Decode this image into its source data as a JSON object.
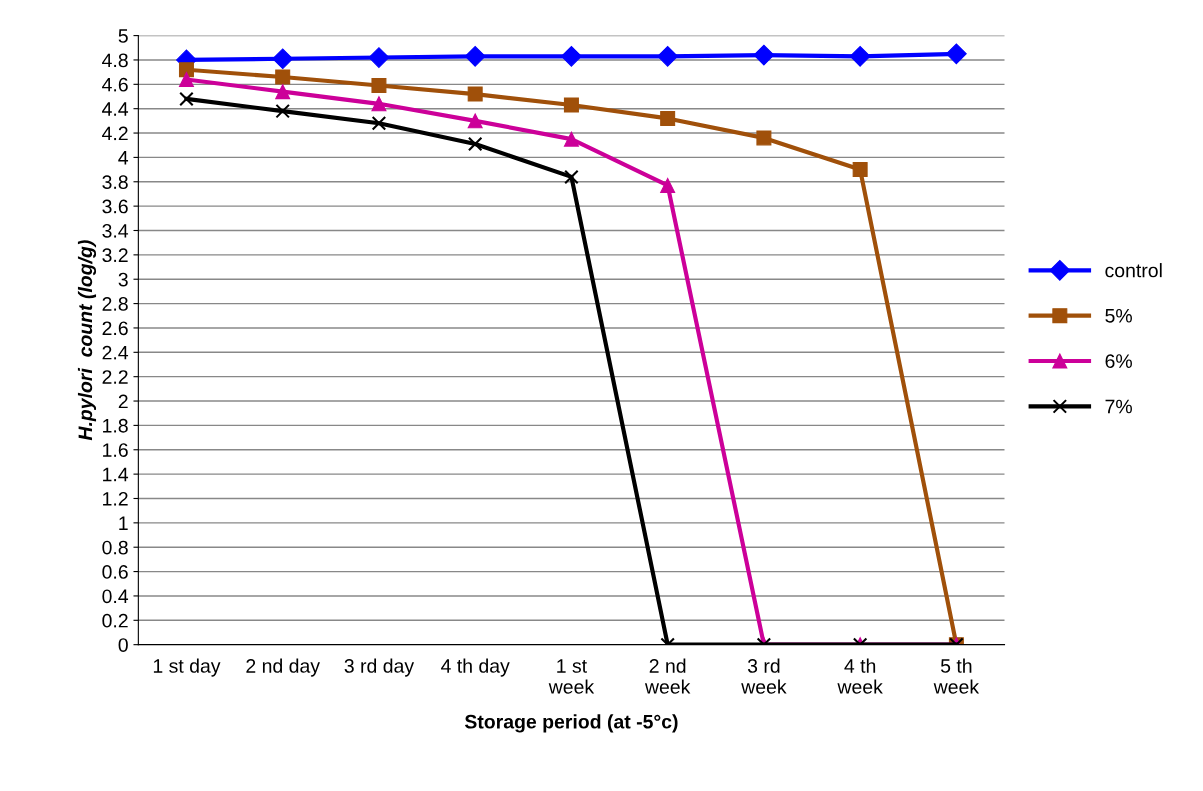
{
  "chart_data": {
    "type": "line",
    "xlabel": "Storage period (at -5°c)",
    "ylabel": "H.pylori  count (log/g)",
    "categories": [
      "1 st day",
      "2 nd day",
      "3 rd day",
      "4 th day",
      "1 st\nweek",
      "2 nd\nweek",
      "3 rd\nweek",
      "4 th\nweek",
      "5 th\nweek"
    ],
    "ylim": [
      0,
      5
    ],
    "yticks": [
      0,
      0.2,
      0.4,
      0.6,
      0.8,
      1,
      1.2,
      1.4,
      1.6,
      1.8,
      2,
      2.2,
      2.4,
      2.6,
      2.8,
      3,
      3.2,
      3.4,
      3.6,
      3.8,
      4,
      4.2,
      4.4,
      4.6,
      4.8,
      5
    ],
    "grid": "y",
    "legend": "right",
    "series": [
      {
        "name": "control",
        "color": "#0000ff",
        "marker": "diamond",
        "values": [
          4.8,
          4.81,
          4.82,
          4.83,
          4.83,
          4.83,
          4.84,
          4.83,
          4.85
        ]
      },
      {
        "name": "5%",
        "color": "#a0500a",
        "marker": "square",
        "values": [
          4.72,
          4.66,
          4.59,
          4.52,
          4.43,
          4.32,
          4.16,
          3.9,
          0
        ]
      },
      {
        "name": "6%",
        "color": "#cc0099",
        "marker": "triangle",
        "values": [
          4.64,
          4.54,
          4.44,
          4.3,
          4.15,
          3.77,
          0,
          0,
          0
        ]
      },
      {
        "name": "7%",
        "color": "#000000",
        "marker": "cross",
        "values": [
          4.48,
          4.38,
          4.28,
          4.11,
          3.84,
          0,
          0,
          0,
          0
        ]
      }
    ]
  }
}
